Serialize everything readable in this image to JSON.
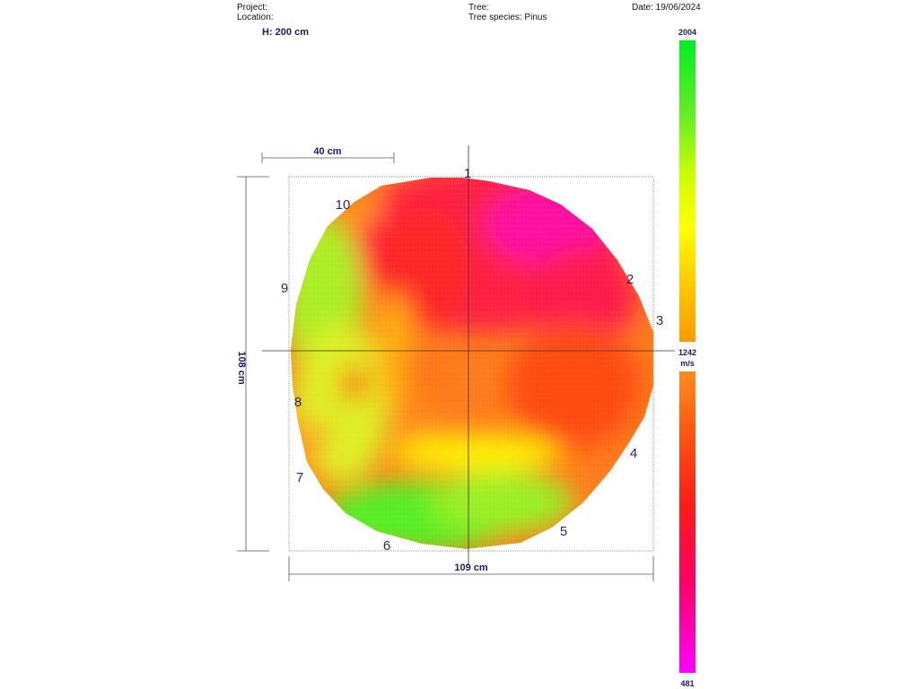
{
  "header": {
    "project_label": "Project:",
    "location_label": "Location:",
    "tree_label": "Tree:",
    "species_label": "Tree species: Pinus",
    "date_label": "Date: 19/06/2024"
  },
  "height_label": "H: 200 cm",
  "scale_ref_label": "40 cm",
  "dimensions": {
    "width_label": "109 cm",
    "height_label": "108 cm"
  },
  "sensors": [
    {
      "id": "1",
      "label": "1"
    },
    {
      "id": "2",
      "label": "2"
    },
    {
      "id": "3",
      "label": "3"
    },
    {
      "id": "4",
      "label": "4"
    },
    {
      "id": "5",
      "label": "5"
    },
    {
      "id": "6",
      "label": "6"
    },
    {
      "id": "7",
      "label": "7"
    },
    {
      "id": "8",
      "label": "8"
    },
    {
      "id": "9",
      "label": "9"
    },
    {
      "id": "10",
      "label": "10"
    }
  ],
  "color_scale": {
    "max_label": "2004",
    "mid_label": "1242",
    "unit_label": "m/s",
    "min_label": "481",
    "colors": {
      "high": "#00ee22",
      "yellow": "#ffff00",
      "orange": "#ff9900",
      "red": "#ff1a1a",
      "magenta": "#ff00ff"
    }
  }
}
